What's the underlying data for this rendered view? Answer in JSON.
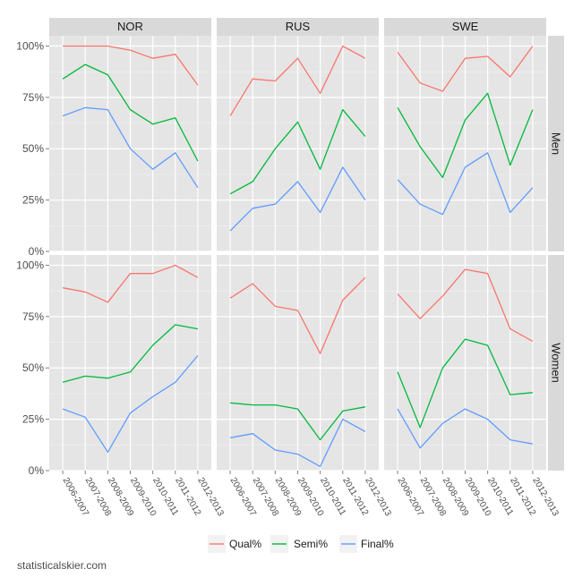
{
  "chart_data": {
    "type": "line",
    "facet_cols": [
      "NOR",
      "RUS",
      "SWE"
    ],
    "facet_rows": [
      "Men",
      "Women"
    ],
    "categories": [
      "2006-2007",
      "2007-2008",
      "2008-2009",
      "2009-2010",
      "2010-2011",
      "2011-2012",
      "2012-2013"
    ],
    "y_ticks": [
      "0%",
      "25%",
      "50%",
      "75%",
      "100%"
    ],
    "ylim": [
      0,
      1.05
    ],
    "legend_position": "bottom",
    "grid": true,
    "series_styles": [
      {
        "name": "Qual%",
        "color": "#f8766d"
      },
      {
        "name": "Semi%",
        "color": "#00ba38"
      },
      {
        "name": "Final%",
        "color": "#619cff"
      }
    ],
    "panels": [
      {
        "col": "NOR",
        "row": "Men",
        "series": [
          {
            "name": "Qual%",
            "values": [
              1.0,
              1.0,
              1.0,
              0.98,
              0.94,
              0.96,
              0.81
            ]
          },
          {
            "name": "Semi%",
            "values": [
              0.84,
              0.91,
              0.86,
              0.69,
              0.62,
              0.65,
              0.44
            ]
          },
          {
            "name": "Final%",
            "values": [
              0.66,
              0.7,
              0.69,
              0.5,
              0.4,
              0.48,
              0.31
            ]
          }
        ]
      },
      {
        "col": "RUS",
        "row": "Men",
        "series": [
          {
            "name": "Qual%",
            "values": [
              0.66,
              0.84,
              0.83,
              0.94,
              0.77,
              1.0,
              0.94
            ]
          },
          {
            "name": "Semi%",
            "values": [
              0.28,
              0.34,
              0.5,
              0.63,
              0.4,
              0.69,
              0.56
            ]
          },
          {
            "name": "Final%",
            "values": [
              0.1,
              0.21,
              0.23,
              0.34,
              0.19,
              0.41,
              0.25
            ]
          }
        ]
      },
      {
        "col": "SWE",
        "row": "Men",
        "series": [
          {
            "name": "Qual%",
            "values": [
              0.97,
              0.82,
              0.78,
              0.94,
              0.95,
              0.85,
              1.0
            ]
          },
          {
            "name": "Semi%",
            "values": [
              0.7,
              0.51,
              0.36,
              0.64,
              0.77,
              0.42,
              0.69
            ]
          },
          {
            "name": "Final%",
            "values": [
              0.35,
              0.23,
              0.18,
              0.41,
              0.48,
              0.19,
              0.31
            ]
          }
        ]
      },
      {
        "col": "NOR",
        "row": "Women",
        "series": [
          {
            "name": "Qual%",
            "values": [
              0.89,
              0.87,
              0.82,
              0.96,
              0.96,
              1.0,
              0.94
            ]
          },
          {
            "name": "Semi%",
            "values": [
              0.43,
              0.46,
              0.45,
              0.48,
              0.61,
              0.71,
              0.69
            ]
          },
          {
            "name": "Final%",
            "values": [
              0.3,
              0.26,
              0.09,
              0.28,
              0.36,
              0.43,
              0.56
            ]
          }
        ]
      },
      {
        "col": "RUS",
        "row": "Women",
        "series": [
          {
            "name": "Qual%",
            "values": [
              0.84,
              0.91,
              0.8,
              0.78,
              0.57,
              0.83,
              0.94
            ]
          },
          {
            "name": "Semi%",
            "values": [
              0.33,
              0.32,
              0.32,
              0.3,
              0.15,
              0.29,
              0.31
            ]
          },
          {
            "name": "Final%",
            "values": [
              0.16,
              0.18,
              0.1,
              0.08,
              0.02,
              0.25,
              0.19
            ]
          }
        ]
      },
      {
        "col": "SWE",
        "row": "Women",
        "series": [
          {
            "name": "Qual%",
            "values": [
              0.86,
              0.74,
              0.85,
              0.98,
              0.96,
              0.69,
              0.63
            ]
          },
          {
            "name": "Semi%",
            "values": [
              0.48,
              0.21,
              0.5,
              0.64,
              0.61,
              0.37,
              0.38
            ]
          },
          {
            "name": "Final%",
            "values": [
              0.3,
              0.11,
              0.23,
              0.3,
              0.25,
              0.15,
              0.13
            ]
          }
        ]
      }
    ]
  },
  "credit": "statisticalskier.com"
}
